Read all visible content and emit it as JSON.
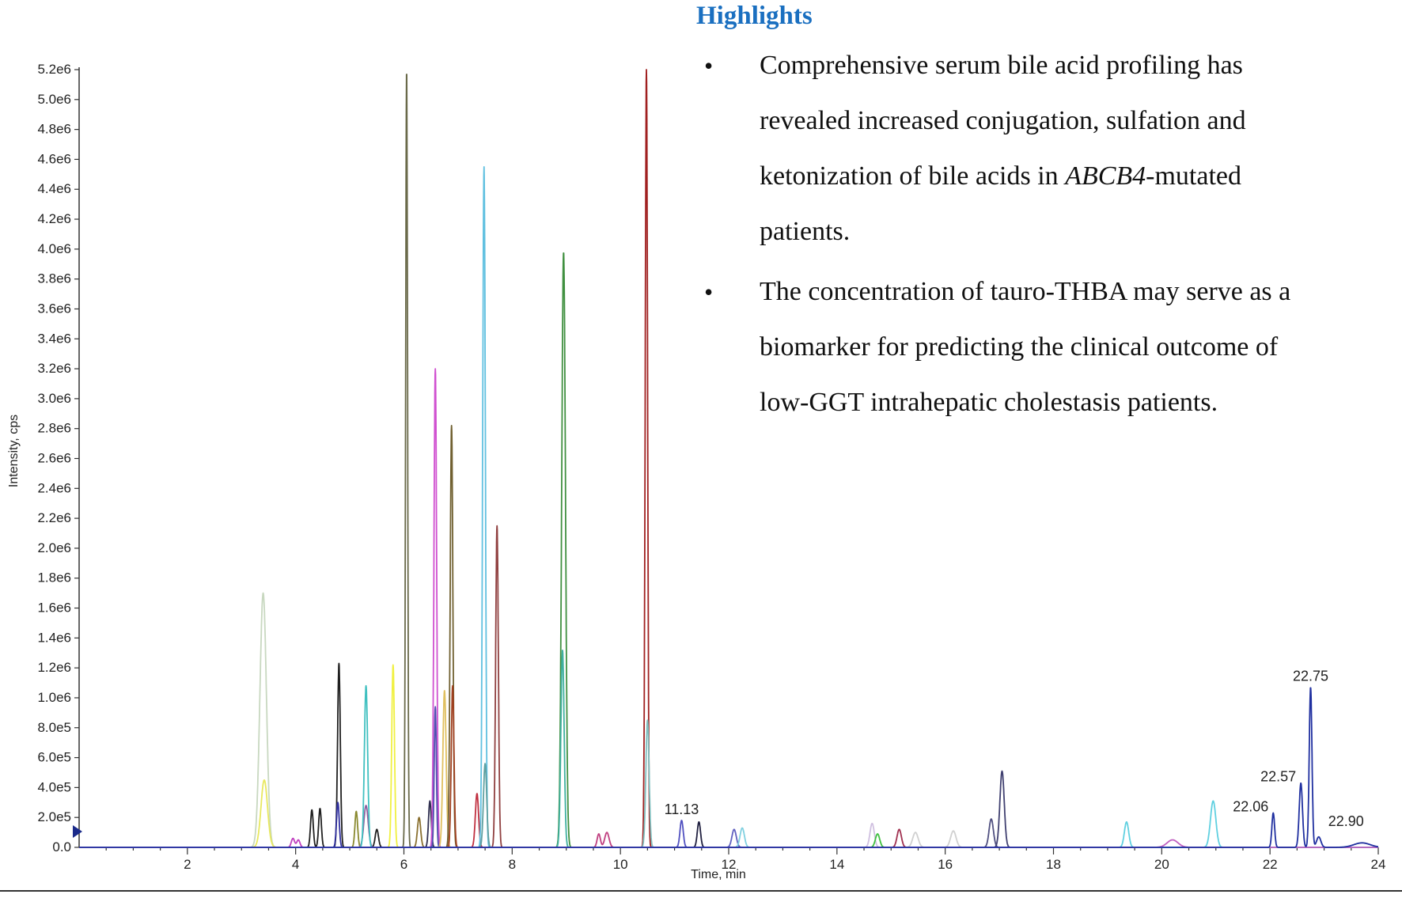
{
  "highlights": {
    "title": "Highlights",
    "items": [
      {
        "bullet": "•",
        "italic": "",
        "text": "Comprehensive serum bile acid profiling has revealed increased conjugation, sulfation and ketonization of bile acids in ",
        "italic_tail": "ABCB4",
        "tail": "-mutated patients."
      },
      {
        "bullet": "•",
        "italic": "",
        "text": "The concentration of tauro-THBA may serve as a biomarker for predicting the clinical outcome of low-GGT intrahepatic cholestasis patients.",
        "italic_tail": "",
        "tail": ""
      }
    ]
  },
  "chart_data": {
    "type": "line",
    "xlabel": "Time, min",
    "ylabel": "Intensity, cps",
    "xlim": [
      0,
      24
    ],
    "ylim": [
      0,
      5200000
    ],
    "x_ticks": [
      2,
      4,
      6,
      8,
      10,
      12,
      14,
      16,
      18,
      20,
      22,
      24
    ],
    "x_tick_labels": [
      "2",
      "4",
      "6",
      "8",
      "10",
      "12",
      "14",
      "16",
      "18",
      "20",
      "22",
      "24"
    ],
    "y_ticks": [
      0,
      200000,
      400000,
      600000,
      800000,
      1000000,
      1200000,
      1400000,
      1600000,
      1800000,
      2000000,
      2200000,
      2400000,
      2600000,
      2800000,
      3000000,
      3200000,
      3400000,
      3600000,
      3800000,
      4000000,
      4200000,
      4400000,
      4600000,
      4800000,
      5000000,
      5200000
    ],
    "y_tick_labels": [
      "0.0",
      "2.0e5",
      "4.0e5",
      "6.0e5",
      "8.0e5",
      "1.0e6",
      "1.2e6",
      "1.4e6",
      "1.6e6",
      "1.8e6",
      "2.0e6",
      "2.2e6",
      "2.4e6",
      "2.6e6",
      "2.8e6",
      "3.0e6",
      "3.2e6",
      "3.4e6",
      "3.6e6",
      "3.8e6",
      "4.0e6",
      "4.2e6",
      "4.4e6",
      "4.6e6",
      "4.8e6",
      "5.0e6",
      "5.2e6"
    ],
    "grid": false,
    "series": [
      {
        "color": "#c8d8c0",
        "peaks": [
          [
            3.4,
            1700000,
            0.06
          ]
        ]
      },
      {
        "color": "#e8e860",
        "peaks": [
          [
            3.42,
            450000,
            0.06
          ]
        ]
      },
      {
        "color": "#c040c0",
        "peaks": [
          [
            3.95,
            60000,
            0.03
          ],
          [
            4.05,
            50000,
            0.03
          ]
        ]
      },
      {
        "color": "#202020",
        "peaks": [
          [
            4.3,
            250000,
            0.025
          ],
          [
            4.45,
            260000,
            0.025
          ],
          [
            4.8,
            1230000,
            0.025
          ],
          [
            5.5,
            120000,
            0.03
          ]
        ]
      },
      {
        "color": "#3030a0",
        "peaks": [
          [
            4.78,
            300000,
            0.025
          ]
        ]
      },
      {
        "color": "#8a8a30",
        "peaks": [
          [
            5.12,
            240000,
            0.025
          ]
        ]
      },
      {
        "color": "#9060a0",
        "peaks": [
          [
            5.3,
            280000,
            0.04
          ]
        ]
      },
      {
        "color": "#40c0c0",
        "peaks": [
          [
            5.3,
            1080000,
            0.03
          ]
        ]
      },
      {
        "color": "#f0f040",
        "peaks": [
          [
            5.8,
            1220000,
            0.025
          ]
        ]
      },
      {
        "color": "#6a6a4a",
        "peaks": [
          [
            6.05,
            5200000,
            0.018
          ]
        ]
      },
      {
        "color": "#8a7030",
        "peaks": [
          [
            6.28,
            200000,
            0.03
          ]
        ]
      },
      {
        "color": "#303050",
        "peaks": [
          [
            6.48,
            310000,
            0.025
          ]
        ]
      },
      {
        "color": "#d050d0",
        "peaks": [
          [
            6.58,
            3200000,
            0.025
          ]
        ]
      },
      {
        "color": "#5050b0",
        "peaks": [
          [
            6.58,
            940000,
            0.02
          ]
        ]
      },
      {
        "color": "#e0c060",
        "peaks": [
          [
            6.75,
            1050000,
            0.03
          ]
        ]
      },
      {
        "color": "#706030",
        "peaks": [
          [
            6.88,
            2820000,
            0.025
          ]
        ]
      },
      {
        "color": "#a04020",
        "peaks": [
          [
            6.9,
            1080000,
            0.025
          ]
        ]
      },
      {
        "color": "#c03040",
        "peaks": [
          [
            7.35,
            360000,
            0.03
          ]
        ]
      },
      {
        "color": "#60c0e0",
        "peaks": [
          [
            7.48,
            4550000,
            0.025
          ]
        ]
      },
      {
        "color": "#60a0a0",
        "peaks": [
          [
            7.5,
            560000,
            0.03
          ]
        ]
      },
      {
        "color": "#904040",
        "peaks": [
          [
            7.72,
            2150000,
            0.025
          ]
        ]
      },
      {
        "color": "#409040",
        "peaks": [
          [
            8.95,
            3980000,
            0.035
          ]
        ]
      },
      {
        "color": "#40b0a0",
        "peaks": [
          [
            8.93,
            1320000,
            0.03
          ]
        ]
      },
      {
        "color": "#c04080",
        "peaks": [
          [
            9.6,
            90000,
            0.03
          ],
          [
            9.75,
            100000,
            0.04
          ]
        ]
      },
      {
        "color": "#a02020",
        "peaks": [
          [
            10.48,
            5200000,
            0.022
          ]
        ]
      },
      {
        "color": "#80c0c0",
        "peaks": [
          [
            10.5,
            850000,
            0.03
          ]
        ]
      },
      {
        "color": "#5050c0",
        "peaks": [
          [
            11.13,
            180000,
            0.03
          ]
        ]
      },
      {
        "color": "#202040",
        "peaks": [
          [
            11.45,
            170000,
            0.03
          ]
        ]
      },
      {
        "color": "#6060c0",
        "peaks": [
          [
            12.1,
            120000,
            0.04
          ]
        ]
      },
      {
        "color": "#80d0e0",
        "peaks": [
          [
            12.25,
            130000,
            0.04
          ]
        ]
      },
      {
        "color": "#d0c0e0",
        "peaks": [
          [
            14.65,
            160000,
            0.04
          ]
        ]
      },
      {
        "color": "#40c040",
        "peaks": [
          [
            14.75,
            90000,
            0.04
          ]
        ]
      },
      {
        "color": "#a03050",
        "peaks": [
          [
            15.15,
            120000,
            0.04
          ]
        ]
      },
      {
        "color": "#d0d0d0",
        "peaks": [
          [
            15.45,
            100000,
            0.05
          ],
          [
            16.15,
            110000,
            0.05
          ]
        ]
      },
      {
        "color": "#505080",
        "peaks": [
          [
            16.85,
            190000,
            0.04
          ]
        ]
      },
      {
        "color": "#404070",
        "peaks": [
          [
            17.05,
            510000,
            0.04
          ]
        ]
      },
      {
        "color": "#60d0e0",
        "peaks": [
          [
            19.35,
            170000,
            0.04
          ],
          [
            20.95,
            310000,
            0.05
          ]
        ]
      },
      {
        "color": "#c060c0",
        "peaks": [
          [
            20.2,
            50000,
            0.1
          ]
        ]
      },
      {
        "color": "#2030a0",
        "peaks": [
          [
            22.06,
            230000,
            0.025
          ],
          [
            22.57,
            430000,
            0.03
          ],
          [
            22.75,
            1070000,
            0.025
          ],
          [
            22.9,
            70000,
            0.04
          ],
          [
            23.7,
            30000,
            0.15
          ]
        ]
      }
    ],
    "annotations": [
      {
        "x": 11.13,
        "y": 180000,
        "text": "11.13"
      },
      {
        "x": 22.06,
        "y": 230000,
        "text": "22.06"
      },
      {
        "x": 22.57,
        "y": 430000,
        "text": "22.57"
      },
      {
        "x": 22.75,
        "y": 1070000,
        "text": "22.75"
      },
      {
        "x": 22.9,
        "y": 70000,
        "text": "22.90"
      }
    ]
  }
}
